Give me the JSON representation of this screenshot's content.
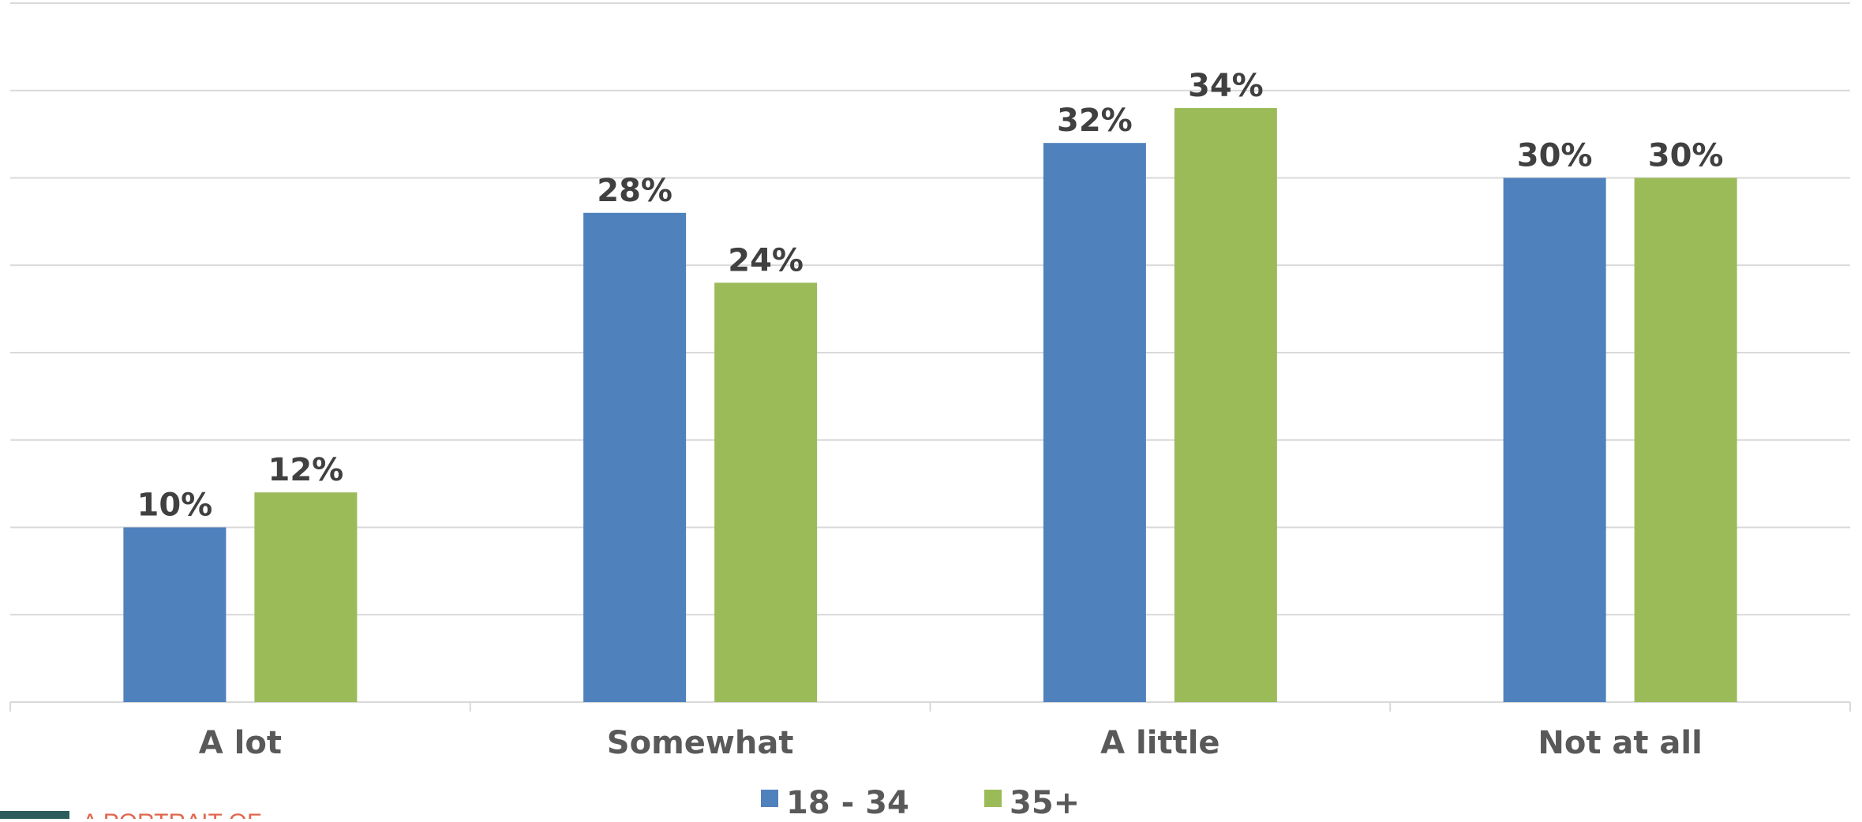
{
  "chart_data": {
    "type": "bar",
    "categories": [
      "A lot",
      "Somewhat",
      "A little",
      "Not at all"
    ],
    "series": [
      {
        "name": "18 - 34",
        "values": [
          10,
          28,
          32,
          30
        ],
        "labels": [
          "10%",
          "28%",
          "32%",
          "30%"
        ],
        "color": "#4f81bd"
      },
      {
        "name": "35+",
        "values": [
          12,
          24,
          34,
          30
        ],
        "labels": [
          "12%",
          "24%",
          "34%",
          "30%"
        ],
        "color": "#9bbb59"
      }
    ],
    "ylim": [
      0,
      40
    ],
    "gridlines": true,
    "gridline_step": 5,
    "legend_position": "bottom-center",
    "title": "",
    "xlabel": "",
    "ylabel": ""
  },
  "footer": {
    "text": "A PORTRAIT OF",
    "accent_color": "#2e5c5c"
  }
}
